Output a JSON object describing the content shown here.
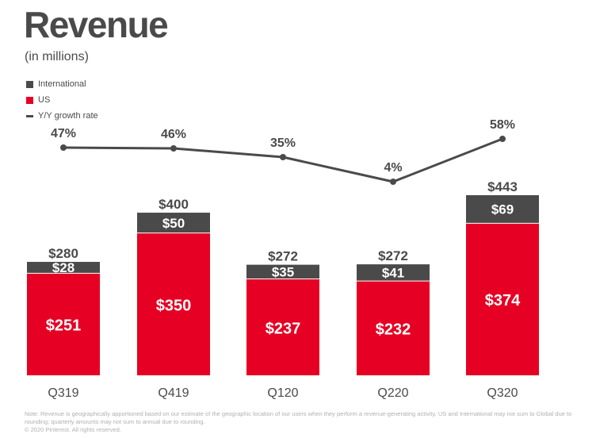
{
  "title": "Revenue",
  "subtitle": "(in millions)",
  "legend": [
    {
      "label": "International",
      "color": "#4a4a4a",
      "kind": "box"
    },
    {
      "label": "US",
      "color": "#e60023",
      "kind": "box"
    },
    {
      "label": "Y/Y growth rate",
      "color": "#4a4a4a",
      "kind": "line"
    }
  ],
  "note": {
    "line1": "Note: Revenue is geographically apportioned based on our estimate of the geographic location of our users when they perform a revenue-generating activity. US and International may not sum to Global due to",
    "line2": "rounding; quarterly amounts may not sum to annual due to rounding.",
    "line3": "© 2020 Pinterest. All rights reserved."
  },
  "chart_data": {
    "type": "bar",
    "stacked": true,
    "categories": [
      "Q319",
      "Q419",
      "Q120",
      "Q220",
      "Q320"
    ],
    "series": [
      {
        "name": "US",
        "values": [
          251,
          350,
          237,
          232,
          374
        ],
        "labels": [
          "$251",
          "$350",
          "$237",
          "$232",
          "$374"
        ],
        "color": "#e60023"
      },
      {
        "name": "International",
        "values": [
          28,
          50,
          35,
          41,
          69
        ],
        "labels": [
          "$28",
          "$50",
          "$35",
          "$41",
          "$69"
        ],
        "color": "#4a4a4a"
      }
    ],
    "totals": [
      280,
      400,
      272,
      272,
      443
    ],
    "total_labels": [
      "$280",
      "$400",
      "$272",
      "$272",
      "$443"
    ],
    "growth": {
      "name": "Y/Y growth rate",
      "values": [
        47,
        46,
        35,
        4,
        58
      ],
      "labels": [
        "47%",
        "46%",
        "35%",
        "4%",
        "58%"
      ],
      "color": "#4a4a4a"
    },
    "ylim": [
      0,
      443
    ]
  }
}
